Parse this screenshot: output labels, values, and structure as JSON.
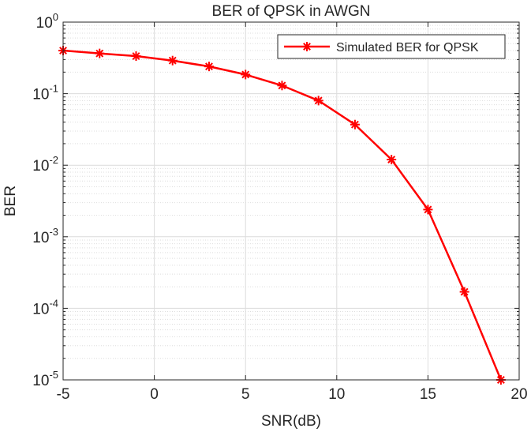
{
  "chart_data": {
    "type": "line",
    "title": "BER of QPSK in AWGN",
    "xlabel": "SNR(dB)",
    "ylabel": "BER",
    "xlim": [
      -5,
      20
    ],
    "ylim": [
      1e-05,
      1
    ],
    "yscale": "log",
    "grid": true,
    "minor_grid": true,
    "legend_position": "top-right",
    "xticks": [
      "-5",
      "0",
      "5",
      "10",
      "15",
      "20"
    ],
    "yticks": [
      {
        "base": "10",
        "exp": "0"
      },
      {
        "base": "10",
        "exp": "-1"
      },
      {
        "base": "10",
        "exp": "-2"
      },
      {
        "base": "10",
        "exp": "-3"
      },
      {
        "base": "10",
        "exp": "-4"
      },
      {
        "base": "10",
        "exp": "-5"
      }
    ],
    "series": [
      {
        "name": "Simulated BER for QPSK",
        "color": "#ff0000",
        "marker": "asterisk",
        "x": [
          -5,
          -3,
          -1,
          1,
          3,
          5,
          7,
          9,
          11,
          13,
          15,
          17,
          19
        ],
        "y": [
          0.4,
          0.365,
          0.335,
          0.29,
          0.24,
          0.185,
          0.13,
          0.08,
          0.037,
          0.012,
          0.0024,
          0.00017,
          1e-05
        ]
      }
    ]
  }
}
